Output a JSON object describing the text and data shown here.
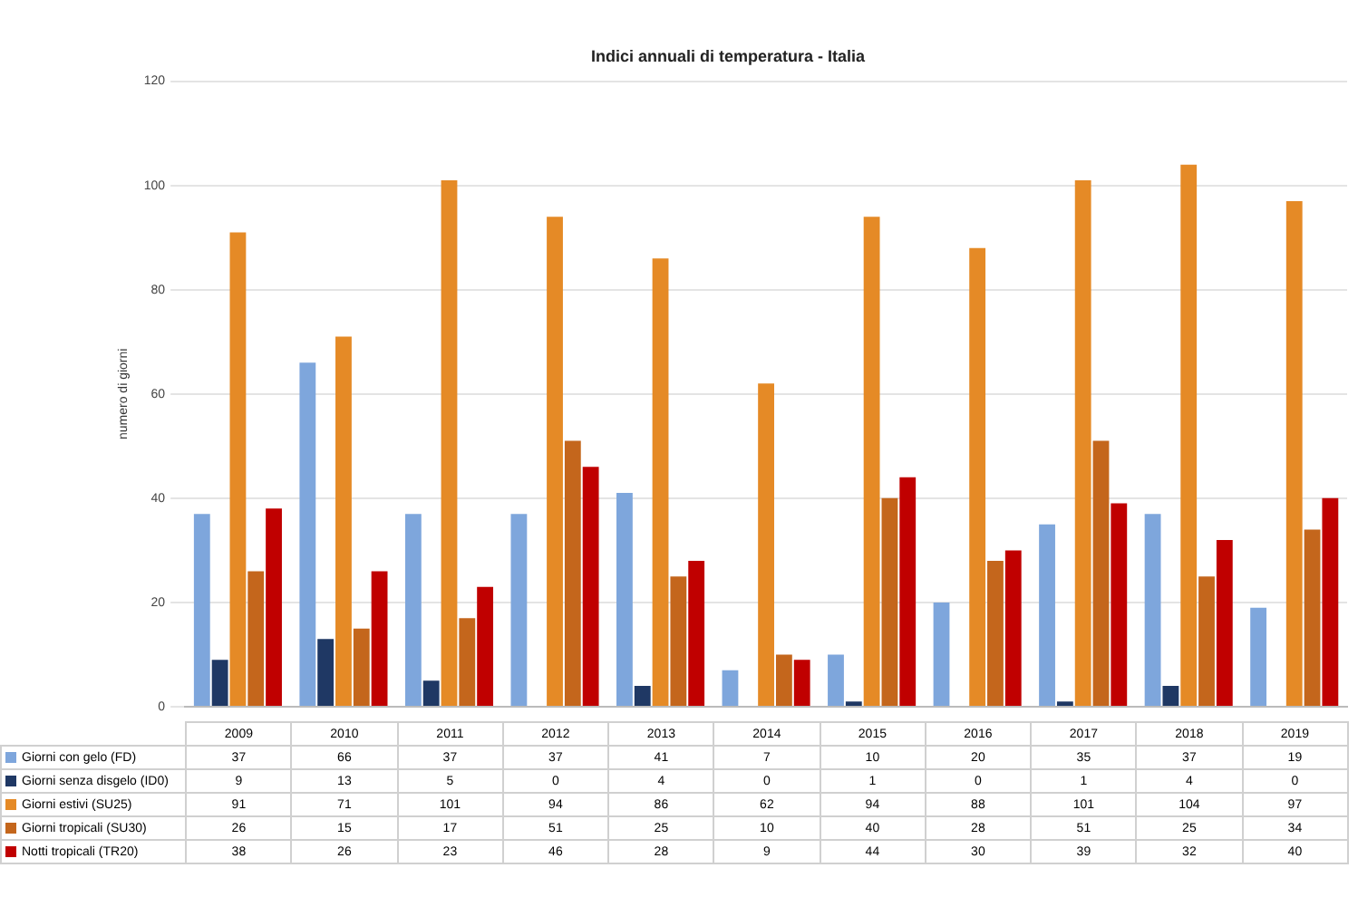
{
  "chart_data": {
    "type": "bar",
    "title": "Indici annuali di temperatura - Italia",
    "ylabel": "numero di giorni",
    "categories": [
      "2009",
      "2010",
      "2011",
      "2012",
      "2013",
      "2014",
      "2015",
      "2016",
      "2017",
      "2018",
      "2019"
    ],
    "series": [
      {
        "name": "Giorni con gelo (FD)",
        "color": "#7ea6dc",
        "values": [
          37,
          66,
          37,
          37,
          41,
          7,
          10,
          20,
          35,
          37,
          19
        ]
      },
      {
        "name": "Giorni senza disgelo (ID0)",
        "color": "#1f3864",
        "values": [
          9,
          13,
          5,
          0,
          4,
          0,
          1,
          0,
          1,
          4,
          0
        ]
      },
      {
        "name": "Giorni estivi (SU25)",
        "color": "#e58a26",
        "values": [
          91,
          71,
          101,
          94,
          86,
          62,
          94,
          88,
          101,
          104,
          97
        ]
      },
      {
        "name": "Giorni tropicali (SU30)",
        "color": "#c4661c",
        "values": [
          26,
          15,
          17,
          51,
          25,
          10,
          40,
          28,
          51,
          25,
          34
        ]
      },
      {
        "name": "Notti tropicali (TR20)",
        "color": "#c00000",
        "values": [
          38,
          26,
          23,
          46,
          28,
          9,
          44,
          30,
          39,
          32,
          40
        ]
      }
    ],
    "ylim": [
      0,
      120
    ],
    "yticks": [
      0,
      20,
      40,
      60,
      80,
      100,
      120
    ],
    "grid": "y",
    "legend": "bottom",
    "data_labels": true
  }
}
